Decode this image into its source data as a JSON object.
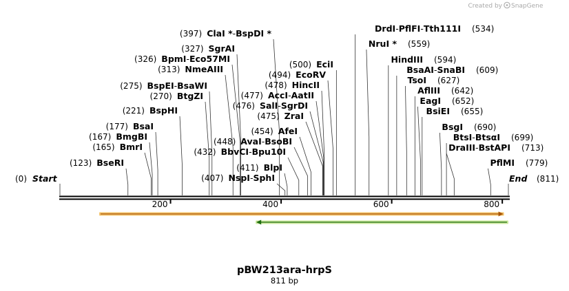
{
  "credit": {
    "created_by": "Created by",
    "brand": "SnapGene"
  },
  "map": {
    "name": "pBW213ara-hrpS",
    "length_label": "811 bp",
    "total_bp": 811,
    "start_label": "Start",
    "start_pos": "(0)",
    "end_label": "End",
    "end_pos": "(811)",
    "ticks": [
      200,
      400,
      600,
      800
    ]
  },
  "sites": [
    {
      "pos": 123,
      "names": [
        "BseRI"
      ]
    },
    {
      "pos": 165,
      "names": [
        "BmrI"
      ]
    },
    {
      "pos": 167,
      "names": [
        "BmgBI"
      ]
    },
    {
      "pos": 177,
      "names": [
        "BsaI"
      ]
    },
    {
      "pos": 221,
      "names": [
        "BspHI"
      ]
    },
    {
      "pos": 270,
      "names": [
        "BtgZI"
      ]
    },
    {
      "pos": 275,
      "names": [
        "BspEI",
        "BsaWI"
      ]
    },
    {
      "pos": 313,
      "names": [
        "NmeAIII"
      ]
    },
    {
      "pos": 326,
      "names": [
        "BpmI",
        "Eco57MI"
      ]
    },
    {
      "pos": 327,
      "names": [
        "SgrAI"
      ]
    },
    {
      "pos": 397,
      "names": [
        "ClaI *",
        "BspDI *"
      ]
    },
    {
      "pos": 407,
      "names": [
        "NspI",
        "SphI"
      ]
    },
    {
      "pos": 411,
      "names": [
        "BlpI"
      ]
    },
    {
      "pos": 432,
      "names": [
        "BbvCI",
        "Bpu10I"
      ]
    },
    {
      "pos": 448,
      "names": [
        "AvaI",
        "BsoBI"
      ]
    },
    {
      "pos": 454,
      "names": [
        "AfeI"
      ]
    },
    {
      "pos": 475,
      "names": [
        "ZraI"
      ]
    },
    {
      "pos": 476,
      "names": [
        "SalI",
        "SgrDI"
      ]
    },
    {
      "pos": 477,
      "names": [
        "AccI",
        "AatII"
      ]
    },
    {
      "pos": 478,
      "names": [
        "HincII"
      ]
    },
    {
      "pos": 494,
      "names": [
        "EcoRV"
      ]
    },
    {
      "pos": 500,
      "names": [
        "EciI"
      ]
    },
    {
      "pos": 534,
      "names": [
        "DrdI",
        "PflFI",
        "Tth111I"
      ]
    },
    {
      "pos": 559,
      "names": [
        "NruI *"
      ]
    },
    {
      "pos": 594,
      "names": [
        "HindIII"
      ]
    },
    {
      "pos": 609,
      "names": [
        "BsaAI",
        "SnaBI"
      ]
    },
    {
      "pos": 627,
      "names": [
        "TsoI"
      ]
    },
    {
      "pos": 642,
      "names": [
        "AflIII"
      ]
    },
    {
      "pos": 652,
      "names": [
        "EagI"
      ]
    },
    {
      "pos": 655,
      "names": [
        "BsiEI"
      ]
    },
    {
      "pos": 690,
      "names": [
        "BsgI"
      ]
    },
    {
      "pos": 699,
      "names": [
        "BtsI",
        "BtsαI"
      ]
    },
    {
      "pos": 713,
      "names": [
        "DraIII",
        "BstAPI"
      ]
    },
    {
      "pos": 779,
      "names": [
        "PflMI"
      ]
    }
  ],
  "features": [
    {
      "name": "forward feature",
      "start": 71,
      "end": 803,
      "direction": "forward",
      "fill": "#f3c46e",
      "edge": "#c0640a",
      "arrow": "#a85505"
    },
    {
      "name": "reverse feature",
      "start": 354,
      "end": 811,
      "direction": "reverse",
      "fill": "#c9e69a",
      "edge": "#3a8a1a",
      "arrow": "#1f6d10"
    }
  ],
  "colors": {
    "backbone": "#000000",
    "text": "#000000",
    "leader": "#333333"
  }
}
